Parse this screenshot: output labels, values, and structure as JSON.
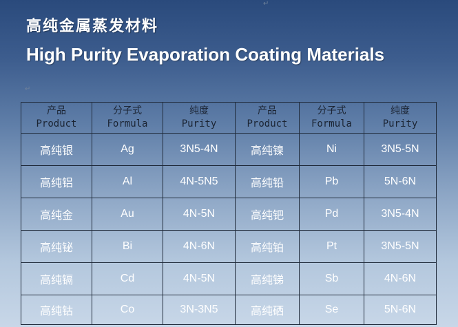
{
  "title_zh": "高纯金属蒸发材料",
  "title_en": "High Purity Evaporation Coating Materials",
  "para_mark": "↵",
  "table": {
    "headers": [
      {
        "zh": "产品",
        "en": "Product"
      },
      {
        "zh": "分子式",
        "en": "Formula"
      },
      {
        "zh": "纯度",
        "en": "Purity"
      },
      {
        "zh": "产品",
        "en": "Product"
      },
      {
        "zh": "分子式",
        "en": "Formula"
      },
      {
        "zh": "纯度",
        "en": "Purity"
      }
    ],
    "rows": [
      [
        "高纯银",
        "Ag",
        "3N5-4N",
        "高纯镍",
        "Ni",
        "3N5-5N"
      ],
      [
        "高纯铝",
        "Al",
        "4N-5N5",
        "高纯铅",
        "Pb",
        "5N-6N"
      ],
      [
        "高纯金",
        "Au",
        "4N-5N",
        "高纯钯",
        "Pd",
        "3N5-4N"
      ],
      [
        "高纯铋",
        "Bi",
        "4N-6N",
        "高纯铂",
        "Pt",
        "3N5-5N"
      ],
      [
        "高纯镉",
        "Cd",
        "4N-5N",
        "高纯锑",
        "Sb",
        "4N-6N"
      ],
      [
        "高纯钴",
        "Co",
        "3N-3N5",
        "高纯硒",
        "Se",
        "5N-6N"
      ]
    ]
  }
}
